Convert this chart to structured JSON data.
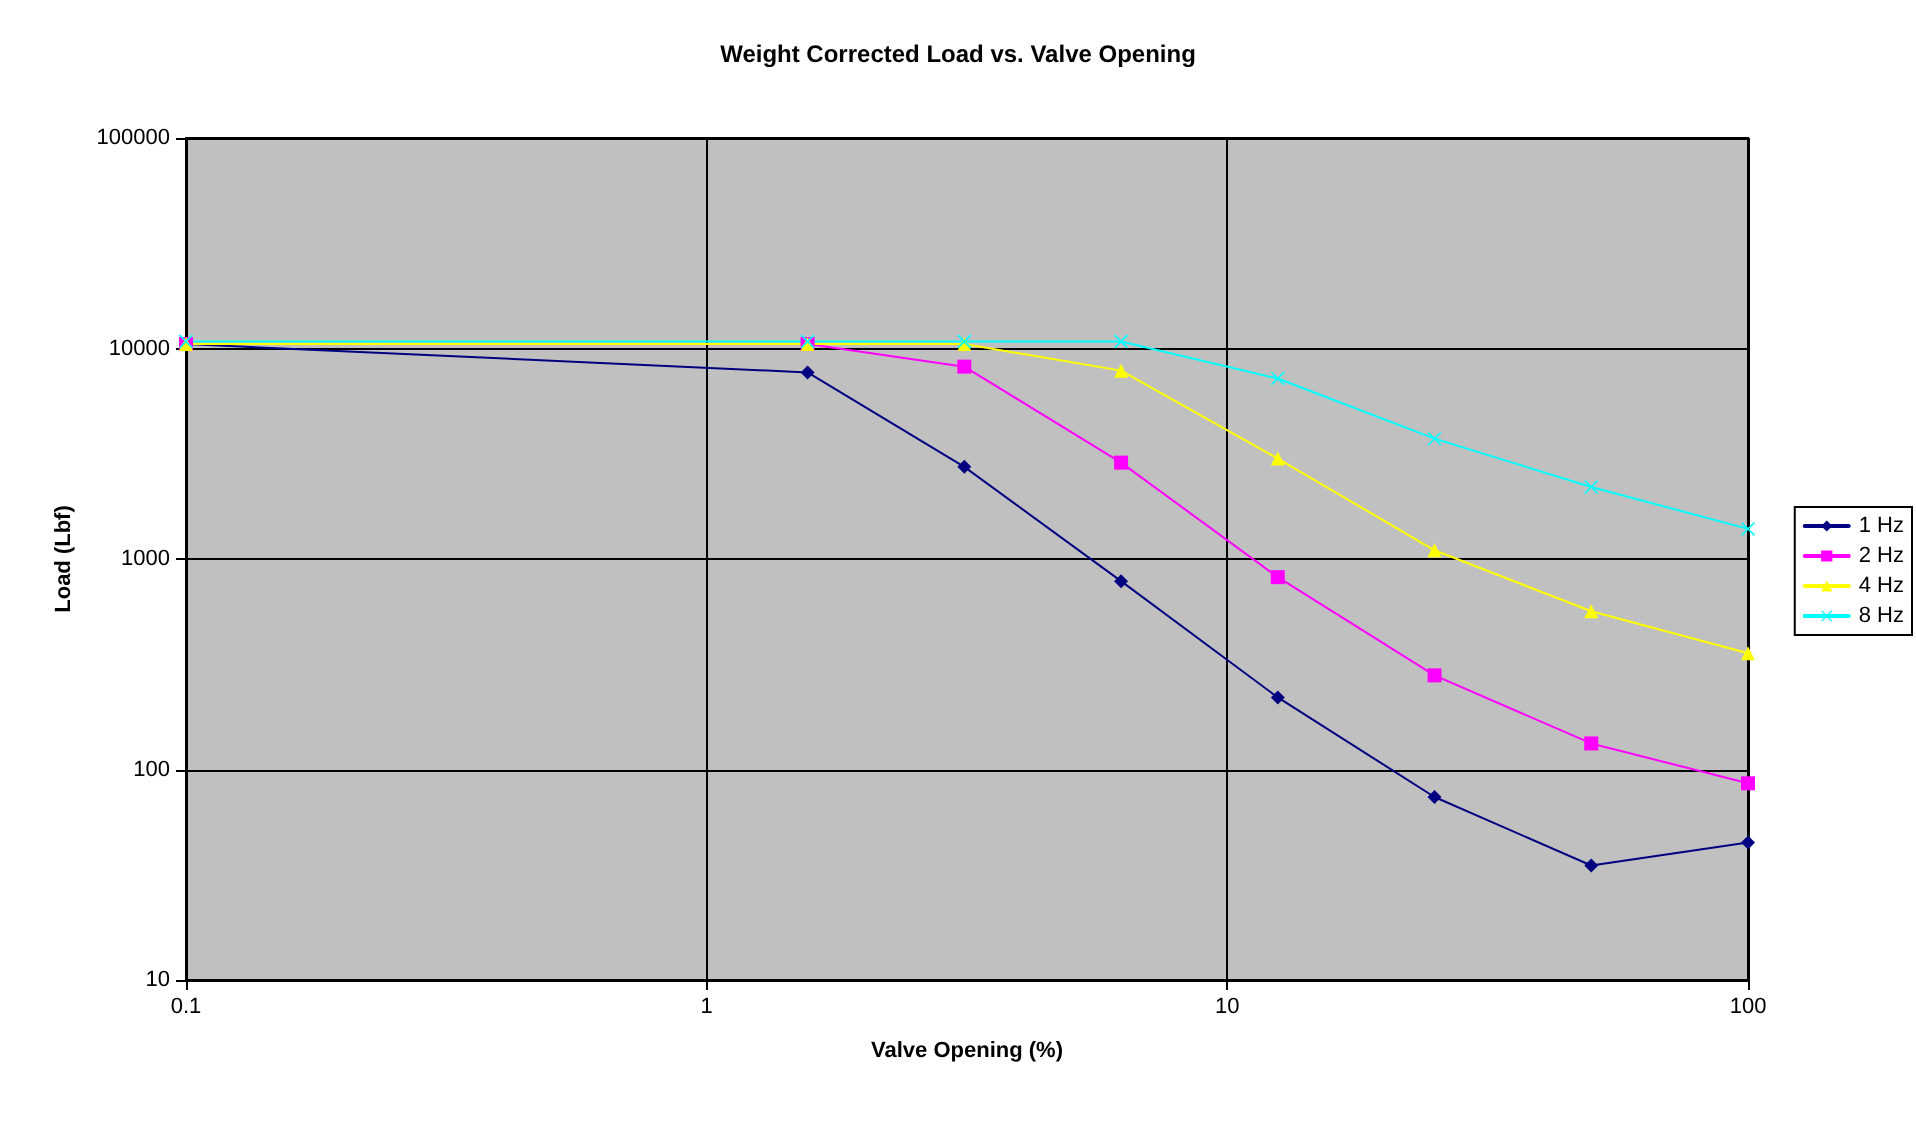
{
  "chart_data": {
    "type": "line",
    "title": "Weight Corrected Load vs. Valve Opening",
    "xlabel": "Valve Opening (%)",
    "ylabel": "Load (Lbf)",
    "log": "xy",
    "grid": true,
    "legend": "right",
    "line_style": "solid",
    "x": [
      0.1,
      1.5625,
      3.125,
      6.25,
      12.5,
      25,
      50,
      100
    ],
    "xlim": [
      0.1,
      100
    ],
    "xticks": [
      0.1,
      1,
      10,
      100
    ],
    "ylim": [
      10,
      100000
    ],
    "yticks": [
      10,
      100,
      1000,
      10000,
      100000
    ],
    "series": [
      {
        "name": "1 Hz",
        "color": "#000080",
        "marker": "diamond",
        "values": [
          10500,
          7700,
          2740,
          785,
          220,
          74,
          35,
          45
        ]
      },
      {
        "name": "2 Hz",
        "color": "#ff00ff",
        "marker": "square",
        "values": [
          10500,
          10500,
          8200,
          2870,
          820,
          280,
          133,
          86
        ]
      },
      {
        "name": "4 Hz",
        "color": "#ffff00",
        "marker": "triangle",
        "values": [
          10500,
          10500,
          10500,
          7850,
          3000,
          1100,
          565,
          357
        ]
      },
      {
        "name": "8 Hz",
        "color": "#00ffff",
        "marker": "cross",
        "values": [
          10800,
          10800,
          10800,
          10800,
          7200,
          3730,
          2200,
          1390
        ]
      }
    ]
  }
}
